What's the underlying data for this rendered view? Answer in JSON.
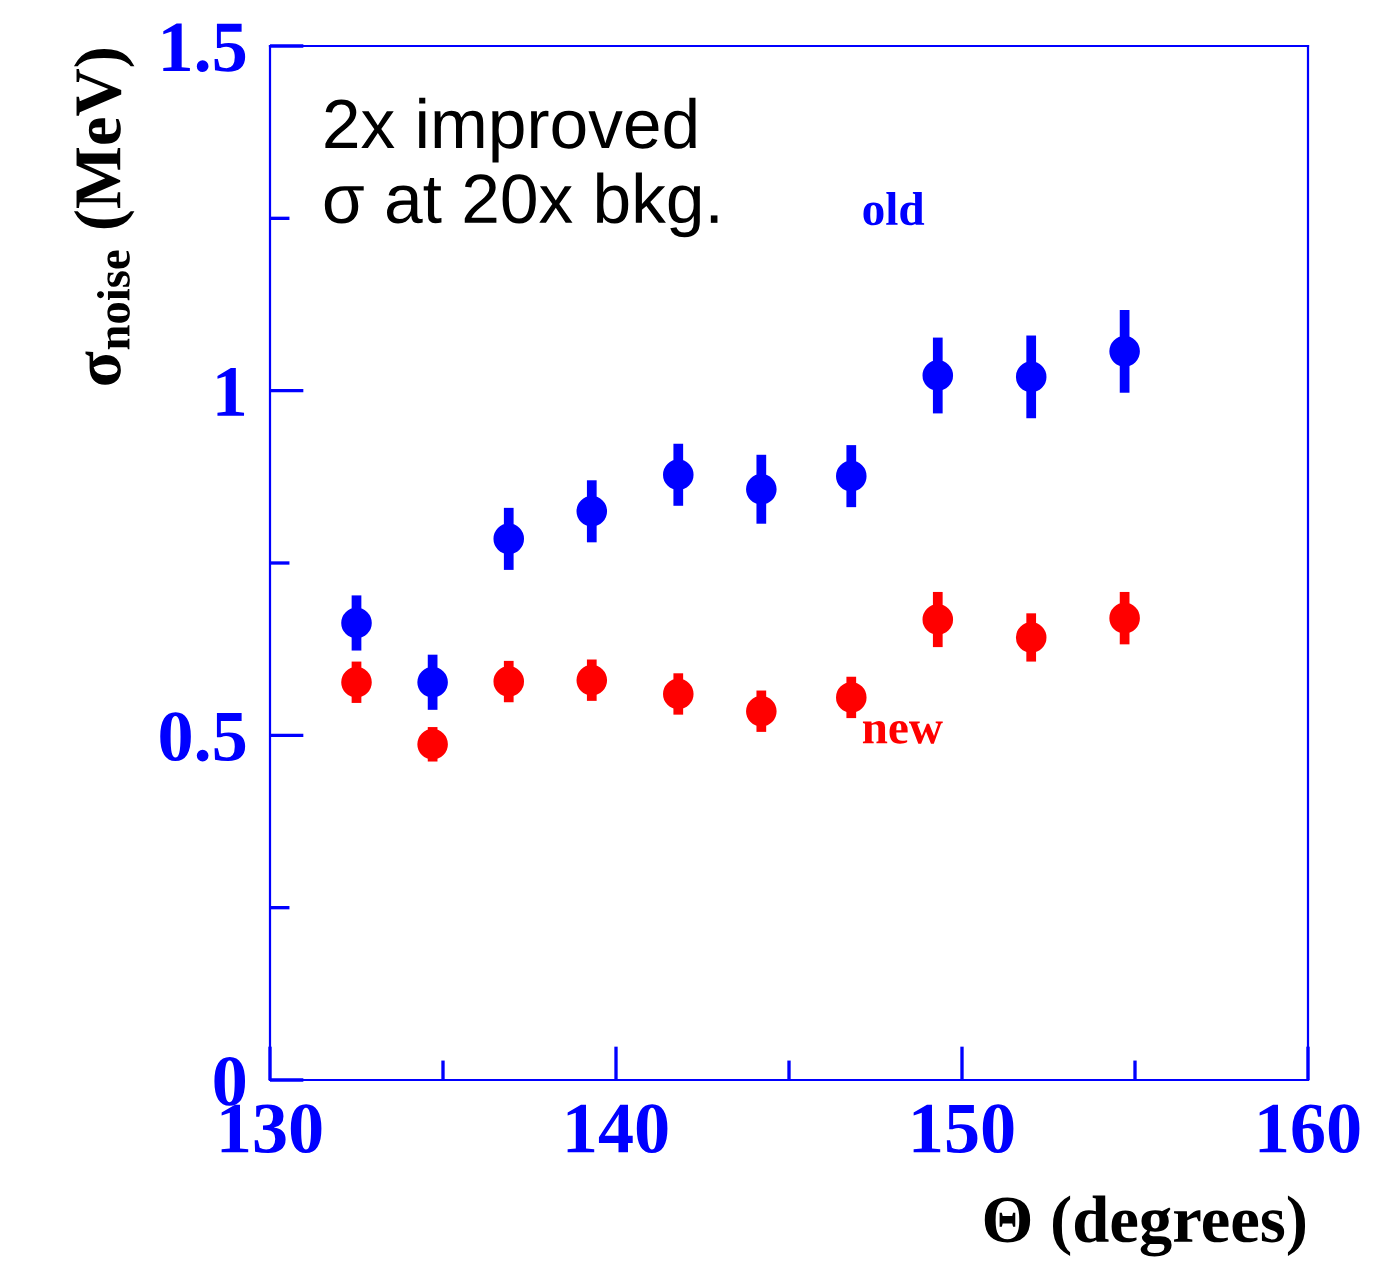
{
  "chart_data": {
    "type": "scatter",
    "xlabel": "Θ (degrees)",
    "ylabel": "σ$_{noise}$ (MeV)",
    "annotations": [
      "2x improved\nσ at 20x bkg."
    ],
    "series": [
      {
        "name": "old",
        "color": "#0000ff",
        "x": [
          132.5,
          134.7,
          136.9,
          139.3,
          141.8,
          144.2,
          146.8,
          149.3,
          152.0,
          154.7
        ],
        "values": [
          0.663,
          0.577,
          0.785,
          0.825,
          0.878,
          0.857,
          0.876,
          1.022,
          1.02,
          1.057
        ],
        "errors": [
          0.04,
          0.04,
          0.045,
          0.045,
          0.045,
          0.05,
          0.045,
          0.055,
          0.06,
          0.06
        ]
      },
      {
        "name": "new",
        "color": "#ff0000",
        "x": [
          132.5,
          134.7,
          136.9,
          139.3,
          141.8,
          144.2,
          146.8,
          149.3,
          152.0,
          154.7
        ],
        "values": [
          0.577,
          0.487,
          0.578,
          0.58,
          0.56,
          0.535,
          0.555,
          0.668,
          0.642,
          0.67
        ],
        "errors": [
          0.03,
          0.025,
          0.03,
          0.03,
          0.03,
          0.03,
          0.03,
          0.04,
          0.035,
          0.038
        ]
      }
    ],
    "xlim": [
      130,
      160
    ],
    "ylim": [
      0,
      1.5
    ],
    "xticks": [
      130,
      {
        "value": 135,
        "label": null
      },
      140,
      {
        "value": 145,
        "label": null
      },
      150,
      {
        "value": 155,
        "label": null
      },
      160
    ],
    "yticks": [
      0,
      {
        "value": 0.25,
        "label": null
      },
      0.5,
      {
        "value": 0.75,
        "label": null
      },
      1,
      {
        "value": 1.25,
        "label": null
      },
      1.5
    ],
    "marker": "circle",
    "grid": false,
    "legend": false
  }
}
